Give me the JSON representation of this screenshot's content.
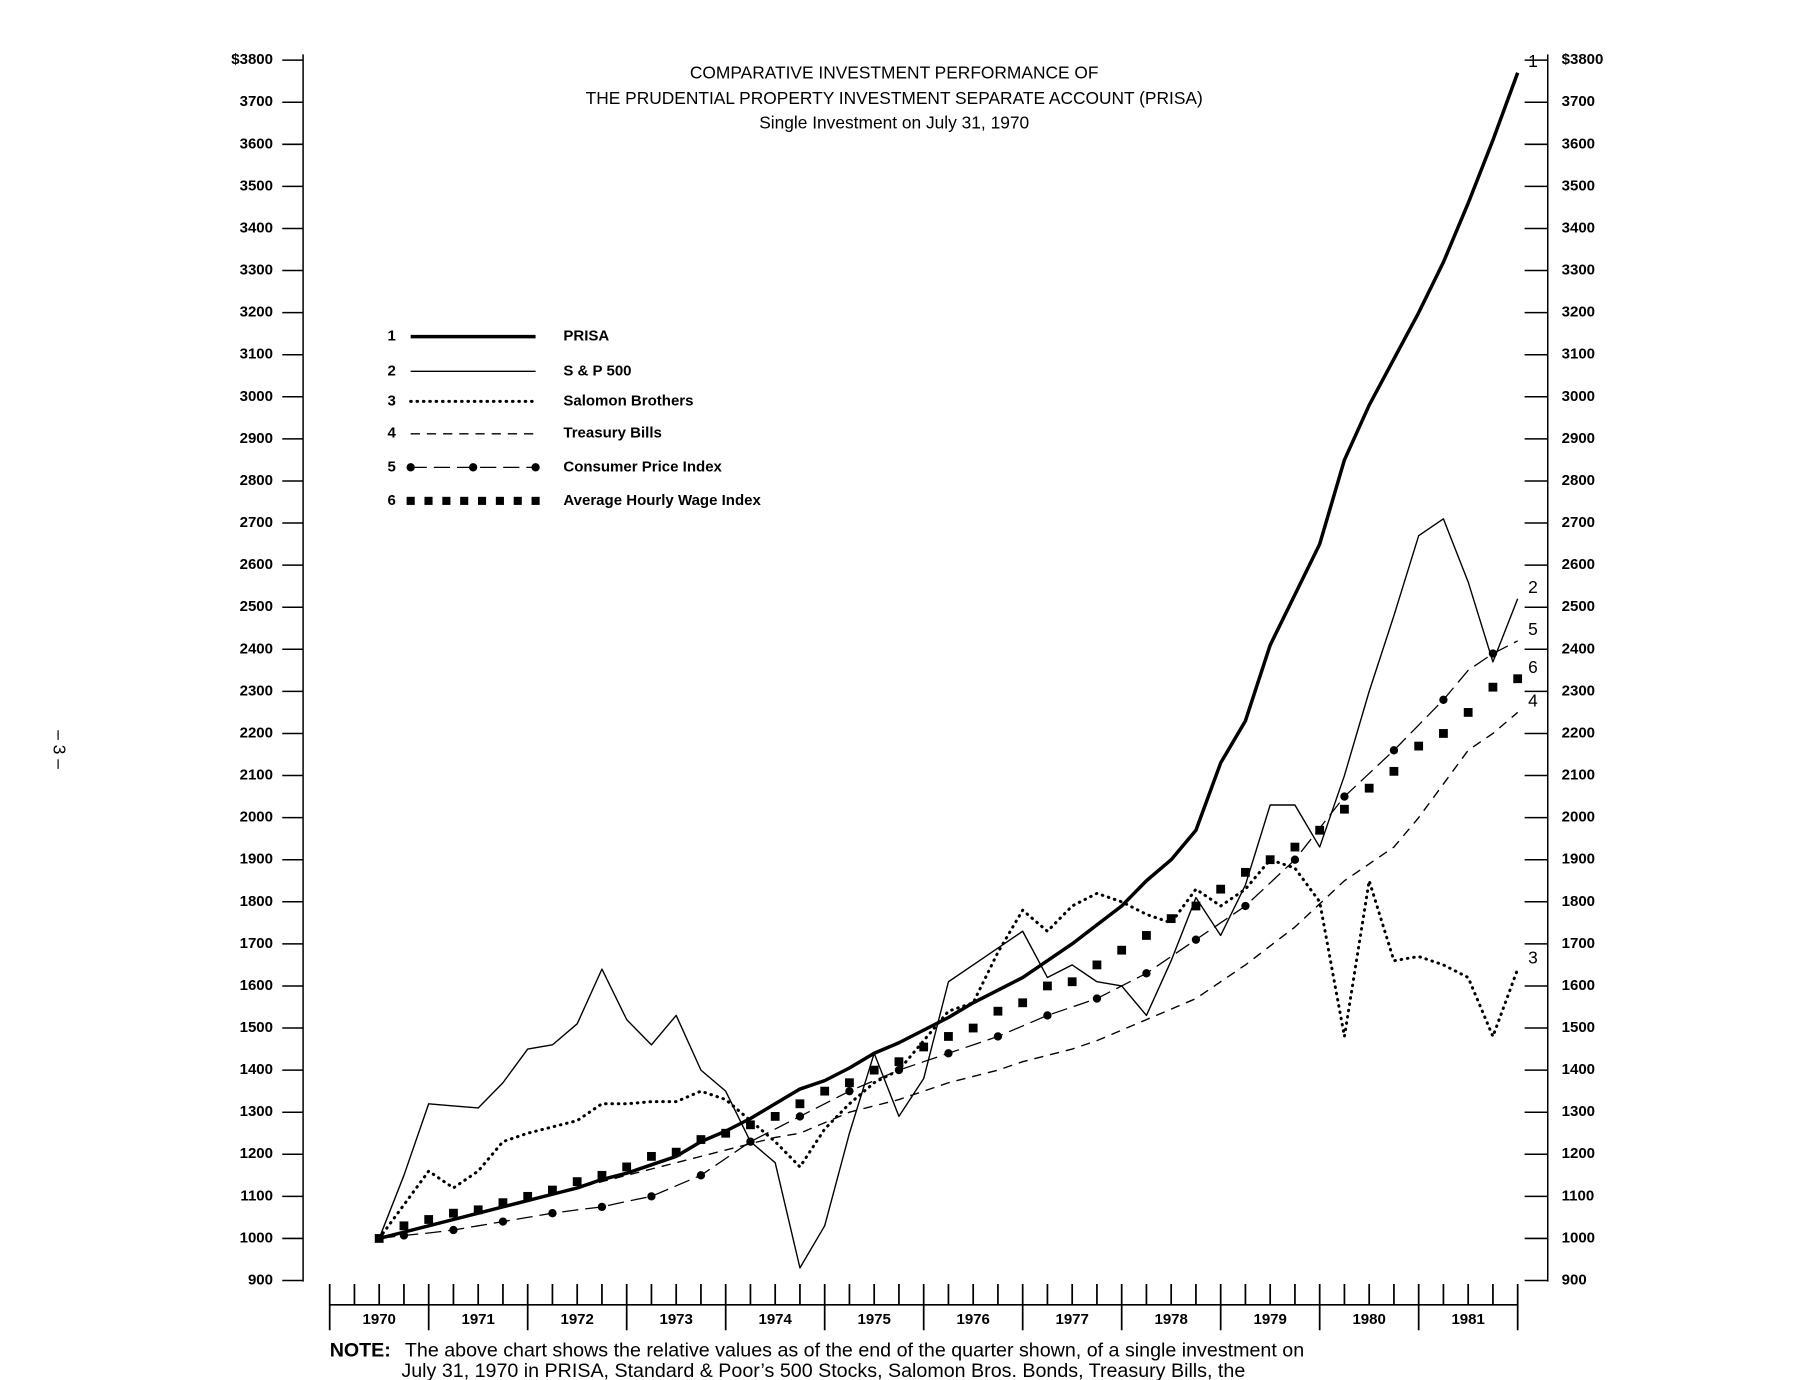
{
  "page_number": "– 3 –",
  "chart_data": {
    "type": "line",
    "title": [
      "COMPARATIVE INVESTMENT PERFORMANCE OF",
      "THE PRUDENTIAL PROPERTY INVESTMENT SEPARATE ACCOUNT (PRISA)"
    ],
    "subtitle": "Single Investment on July 31, 1970",
    "x": [
      1970.5,
      1970.75,
      1971,
      1971.25,
      1971.5,
      1971.75,
      1972,
      1972.25,
      1972.5,
      1972.75,
      1973,
      1973.25,
      1973.5,
      1973.75,
      1974,
      1974.25,
      1974.5,
      1974.75,
      1975,
      1975.25,
      1975.5,
      1975.75,
      1976,
      1976.25,
      1976.5,
      1976.75,
      1977,
      1977.25,
      1977.5,
      1977.75,
      1978,
      1978.25,
      1978.5,
      1978.75,
      1979,
      1979.25,
      1979.5,
      1979.75,
      1980,
      1980.25,
      1980.5,
      1980.75,
      1981,
      1981.25,
      1981.5,
      1981.75,
      1982
    ],
    "xlim": [
      1970,
      1982
    ],
    "xticks": [
      1970,
      1971,
      1972,
      1973,
      1974,
      1975,
      1976,
      1977,
      1978,
      1979,
      1980,
      1981,
      1982
    ],
    "year_labels": [
      "1970",
      "1971",
      "1972",
      "1973",
      "1974",
      "1975",
      "1976",
      "1977",
      "1978",
      "1979",
      "1980",
      "1981"
    ],
    "ylim": [
      900,
      3800
    ],
    "yticks": [
      {
        "value": 3800,
        "label": "$3800"
      },
      3700,
      3600,
      3500,
      3400,
      3300,
      3200,
      3100,
      3000,
      2900,
      2800,
      2700,
      2600,
      2500,
      2400,
      2300,
      2200,
      2100,
      2000,
      1900,
      1800,
      1700,
      1600,
      1500,
      1400,
      1300,
      1200,
      1100,
      1000,
      900
    ],
    "y2lim": [
      900,
      3800
    ],
    "y2ticks": [
      {
        "value": 3800,
        "label": "$3800"
      },
      3700,
      3600,
      3500,
      3400,
      3300,
      3200,
      3100,
      3000,
      2900,
      2800,
      2700,
      2600,
      2500,
      2400,
      2300,
      2200,
      2100,
      2000,
      1900,
      1800,
      1700,
      1600,
      1500,
      1400,
      1300,
      1200,
      1100,
      1000,
      900
    ],
    "legend": "upper left",
    "series": [
      {
        "label": "1",
        "name": "PRISA",
        "color": "#000000",
        "style": "thick",
        "values": [
          1000,
          1015,
          1030,
          1045,
          1060,
          1075,
          1090,
          1105,
          1120,
          1140,
          1155,
          1175,
          1195,
          1230,
          1255,
          1285,
          1320,
          1355,
          1375,
          1405,
          1440,
          1465,
          1495,
          1525,
          1560,
          1590,
          1620,
          1660,
          1700,
          1745,
          1790,
          1850,
          1900,
          1970,
          2130,
          2230,
          2410,
          2530,
          2650,
          2850,
          2980,
          3090,
          3200,
          3320,
          3460,
          3610,
          3770
        ]
      },
      {
        "label": "2",
        "name": "S & P 500",
        "color": "#000000",
        "style": "solid",
        "values": [
          1000,
          1150,
          1320,
          1315,
          1310,
          1370,
          1450,
          1460,
          1510,
          1640,
          1520,
          1460,
          1530,
          1400,
          1350,
          1230,
          1180,
          930,
          1030,
          1250,
          1440,
          1290,
          1380,
          1610,
          1650,
          1690,
          1730,
          1620,
          1650,
          1610,
          1600,
          1530,
          1660,
          1810,
          1720,
          1840,
          2030,
          2030,
          1930,
          2100,
          2300,
          2480,
          2670,
          2710,
          2560,
          2370,
          2520
        ]
      },
      {
        "label": "3",
        "name": "Salomon Brothers",
        "color": "#000000",
        "style": "dotted",
        "values": [
          1000,
          1080,
          1160,
          1120,
          1160,
          1230,
          1250,
          1265,
          1280,
          1320,
          1320,
          1325,
          1325,
          1350,
          1330,
          1280,
          1230,
          1170,
          1260,
          1320,
          1370,
          1400,
          1470,
          1540,
          1560,
          1680,
          1780,
          1730,
          1790,
          1820,
          1800,
          1770,
          1750,
          1830,
          1790,
          1830,
          1900,
          1880,
          1800,
          1480,
          1850,
          1660,
          1670,
          1650,
          1620,
          1480,
          1640
        ]
      },
      {
        "label": "4",
        "name": "Treasury Bills",
        "color": "#000000",
        "style": "dashed",
        "values": [
          1000,
          1015,
          1030,
          1045,
          1060,
          1075,
          1090,
          1105,
          1120,
          1135,
          1150,
          1165,
          1180,
          1195,
          1210,
          1225,
          1240,
          1250,
          1275,
          1300,
          1315,
          1330,
          1350,
          1370,
          1385,
          1400,
          1420,
          1435,
          1450,
          1470,
          1495,
          1520,
          1545,
          1570,
          1610,
          1650,
          1695,
          1740,
          1795,
          1850,
          1890,
          1930,
          2000,
          2080,
          2160,
          2200,
          2250
        ]
      },
      {
        "label": "5",
        "name": "Consumer Price Index",
        "color": "#000000",
        "style": "dash-dot",
        "values": [
          1000,
          1007,
          1013,
          1020,
          1030,
          1040,
          1050,
          1060,
          1068,
          1075,
          1088,
          1100,
          1125,
          1150,
          1190,
          1230,
          1260,
          1290,
          1320,
          1350,
          1375,
          1400,
          1420,
          1440,
          1460,
          1480,
          1505,
          1530,
          1550,
          1570,
          1600,
          1630,
          1670,
          1710,
          1750,
          1790,
          1845,
          1900,
          1975,
          2050,
          2105,
          2160,
          2220,
          2280,
          2350,
          2390,
          2420
        ]
      },
      {
        "label": "6",
        "name": "Average Hourly Wage Index",
        "color": "#000000",
        "style": "squares",
        "values": [
          1000,
          1030,
          1045,
          1060,
          1068,
          1085,
          1100,
          1115,
          1135,
          1150,
          1170,
          1195,
          1205,
          1235,
          1250,
          1270,
          1290,
          1320,
          1350,
          1370,
          1400,
          1420,
          1455,
          1480,
          1500,
          1540,
          1560,
          1600,
          1610,
          1650,
          1685,
          1720,
          1760,
          1790,
          1830,
          1870,
          1900,
          1930,
          1970,
          2020,
          2070,
          2110,
          2170,
          2200,
          2250,
          2310,
          2330
        ]
      }
    ]
  },
  "note": {
    "label": "NOTE:",
    "lines": [
      "The above chart shows the relative values as of the end of the quarter shown, of a single investment on",
      "July 31, 1970 in PRISA, Standard & Poor’s 500 Stocks, Salomon Bros. Bonds, Treasury Bills, the"
    ]
  }
}
